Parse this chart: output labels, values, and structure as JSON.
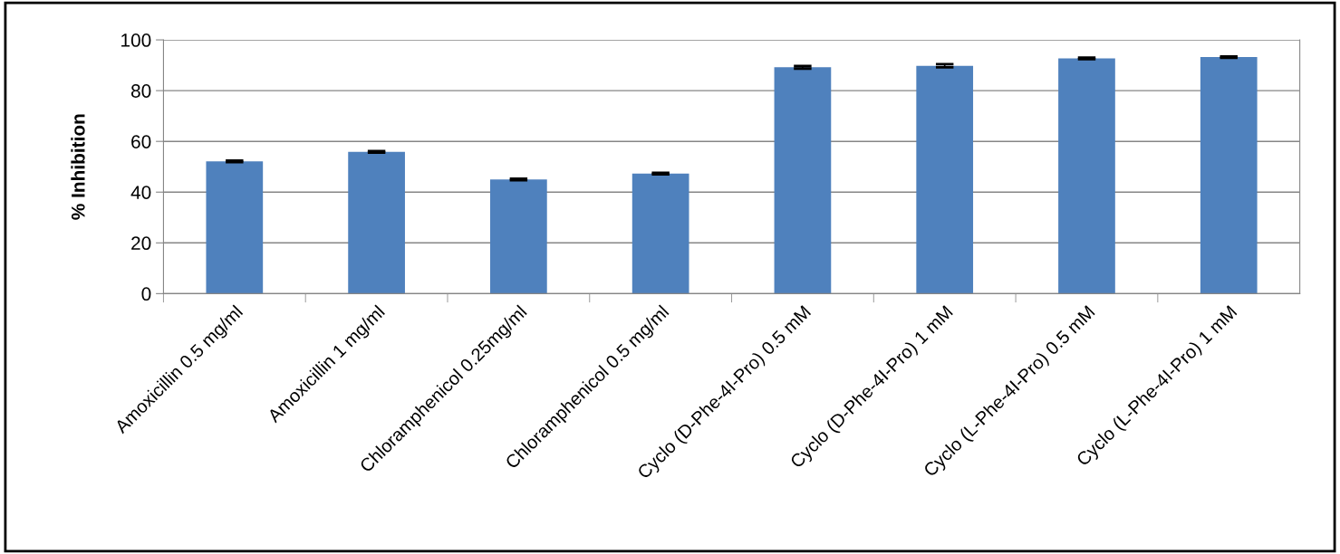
{
  "chart_data": {
    "type": "bar",
    "ylabel": "% Inhibition",
    "categories": [
      "Amoxicillin 0.5 mg/ml",
      "Amoxicillin 1 mg/ml",
      "Chloramphenicol 0.25mg/ml",
      "Chloramphenicol 0.5 mg/ml",
      "Cyclo (D-Phe-4I-Pro) 0.5 mM",
      "Cyclo (D-Phe-4I-Pro) 1 mM",
      "Cyclo (L-Phe-4I-Pro) 0.5 mM",
      "Cyclo (L-Phe-4I-Pro) 1 mM"
    ],
    "values": [
      52.1,
      55.9,
      45.0,
      47.3,
      89.2,
      89.8,
      92.7,
      93.2
    ],
    "errors": [
      0.3,
      0.3,
      0.3,
      0.3,
      0.5,
      0.6,
      0.3,
      0.3
    ],
    "color": "#4f81bd",
    "ylim": [
      0,
      100
    ],
    "yticks": [
      0,
      20,
      40,
      60,
      80,
      100
    ],
    "grid": "y"
  }
}
